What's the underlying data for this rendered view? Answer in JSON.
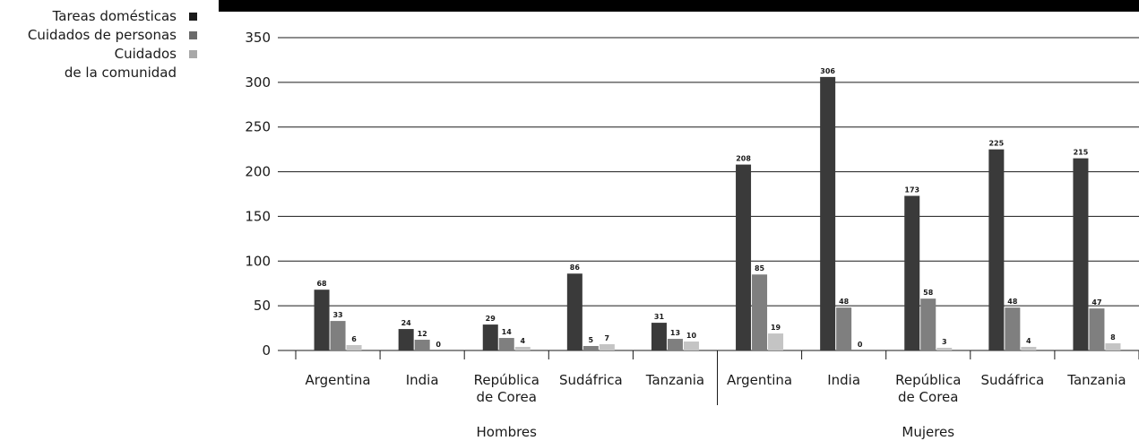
{
  "chart_data": {
    "type": "bar",
    "title": "",
    "xlabel": "",
    "ylabel": "",
    "ylim": [
      0,
      350
    ],
    "yticks": [
      0,
      50,
      100,
      150,
      200,
      250,
      300,
      350
    ],
    "grid": true,
    "legend_position": "top-left",
    "groups": [
      "Hombres",
      "Mujeres"
    ],
    "categories": [
      "Argentina",
      "India",
      "República de Corea",
      "Sudáfrica",
      "Tanzania",
      "Argentina",
      "India",
      "República de Corea",
      "Sudáfrica",
      "Tanzania"
    ],
    "series": [
      {
        "name": "Tareas domésticas",
        "color": "#3a3a3a",
        "values": [
          68,
          24,
          29,
          86,
          31,
          208,
          306,
          173,
          225,
          215
        ]
      },
      {
        "name": "Cuidados de personas",
        "color": "#7f7f7f",
        "values": [
          33,
          12,
          14,
          5,
          13,
          85,
          48,
          58,
          48,
          47
        ]
      },
      {
        "name": "Cuidados\nde la comunidad",
        "color": "#c4c4c4",
        "values": [
          6,
          0,
          4,
          7,
          10,
          19,
          0,
          3,
          4,
          8
        ]
      }
    ],
    "legend_swatch_colors": [
      "#1a1a1a",
      "#6b6b6b",
      "#a8a8a8"
    ]
  }
}
